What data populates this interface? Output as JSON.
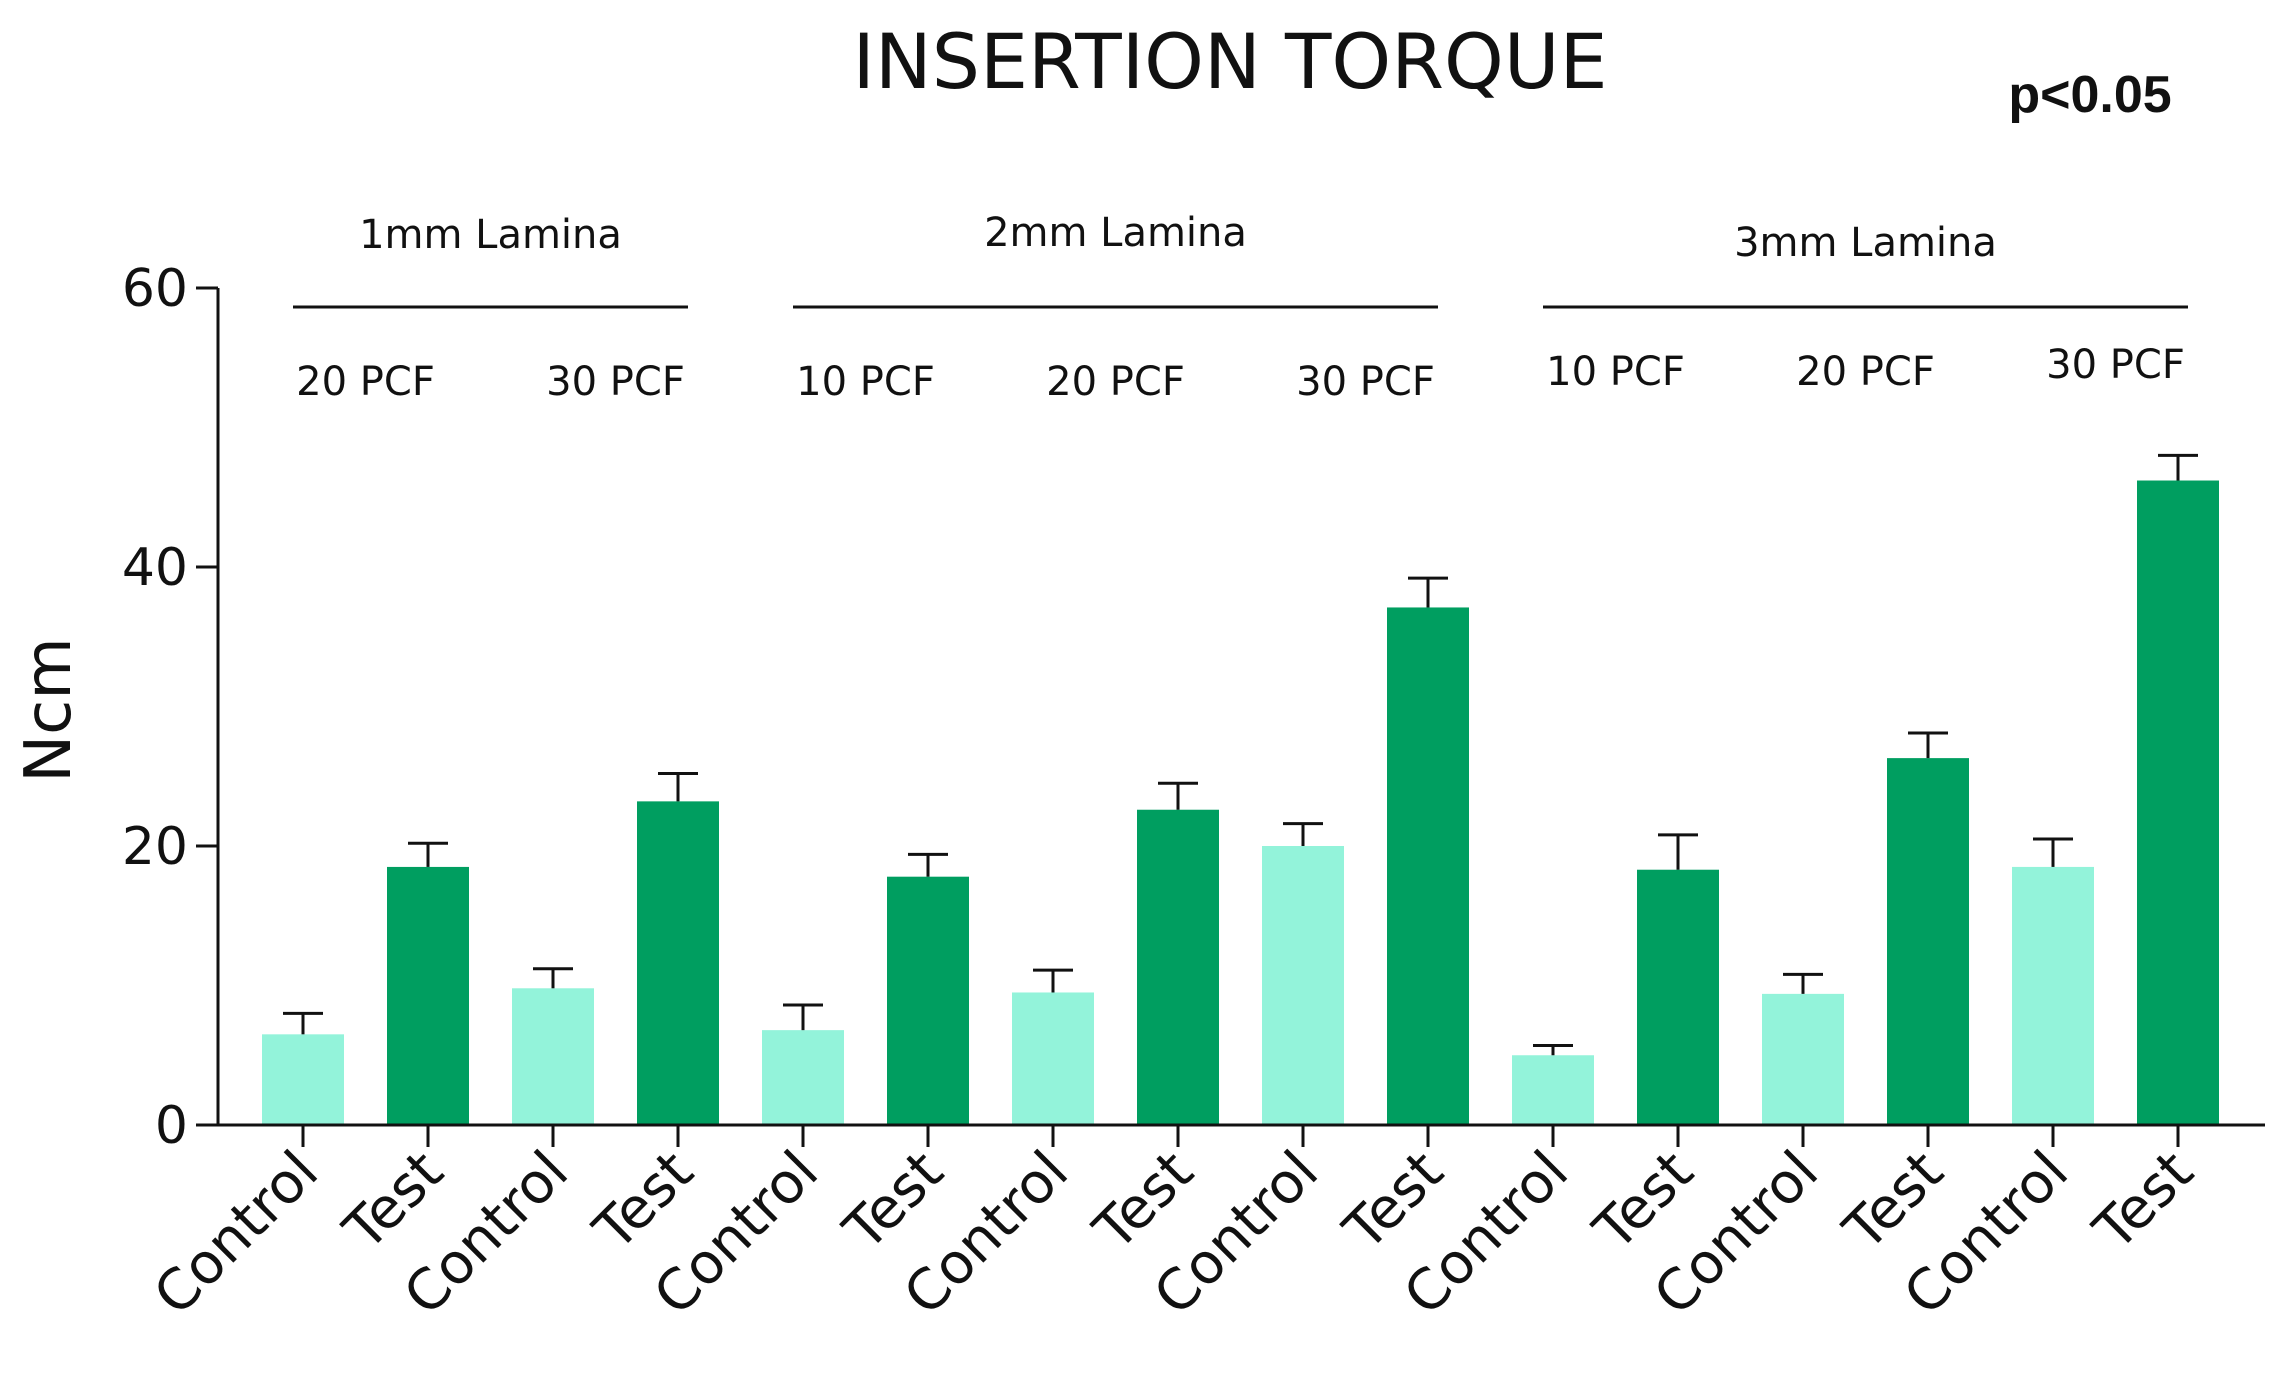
{
  "chart_data": {
    "type": "bar",
    "title": "INSERTION TORQUE",
    "annotation": "p<0.05",
    "ylabel": "Ncm",
    "xlabel": "",
    "ylim": [
      0,
      60
    ],
    "yticks": [
      "0",
      "20",
      "40",
      "60"
    ],
    "colors": {
      "Control": "#93F3DA",
      "Test": "#009E60"
    },
    "groups": [
      {
        "label": "1mm Lamina",
        "first": 0,
        "last": 3
      },
      {
        "label": "2mm Lamina",
        "first": 4,
        "last": 9
      },
      {
        "label": "3mm Lamina",
        "first": 10,
        "last": 15
      }
    ],
    "subgroups": [
      {
        "label": "20 PCF",
        "first": 0,
        "last": 1
      },
      {
        "label": "30 PCF",
        "first": 2,
        "last": 3
      },
      {
        "label": "10 PCF",
        "first": 4,
        "last": 5
      },
      {
        "label": "20 PCF",
        "first": 6,
        "last": 7
      },
      {
        "label": "30 PCF",
        "first": 8,
        "last": 9
      },
      {
        "label": "10 PCF",
        "first": 10,
        "last": 11
      },
      {
        "label": "20 PCF",
        "first": 12,
        "last": 13
      },
      {
        "label": "30 PCF",
        "first": 14,
        "last": 15
      }
    ],
    "categories": [
      "Control",
      "Test",
      "Control",
      "Test",
      "Control",
      "Test",
      "Control",
      "Test",
      "Control",
      "Test",
      "Control",
      "Test",
      "Control",
      "Test",
      "Control",
      "Test"
    ],
    "values": [
      6.5,
      18.5,
      9.8,
      23.2,
      6.8,
      17.8,
      9.5,
      22.6,
      20.0,
      37.1,
      5.0,
      18.3,
      9.4,
      26.3,
      18.5,
      46.2
    ],
    "errors": [
      1.5,
      1.7,
      1.4,
      2.0,
      1.8,
      1.6,
      1.6,
      1.9,
      1.6,
      2.1,
      0.7,
      2.5,
      1.4,
      1.8,
      2.0,
      1.8
    ]
  }
}
